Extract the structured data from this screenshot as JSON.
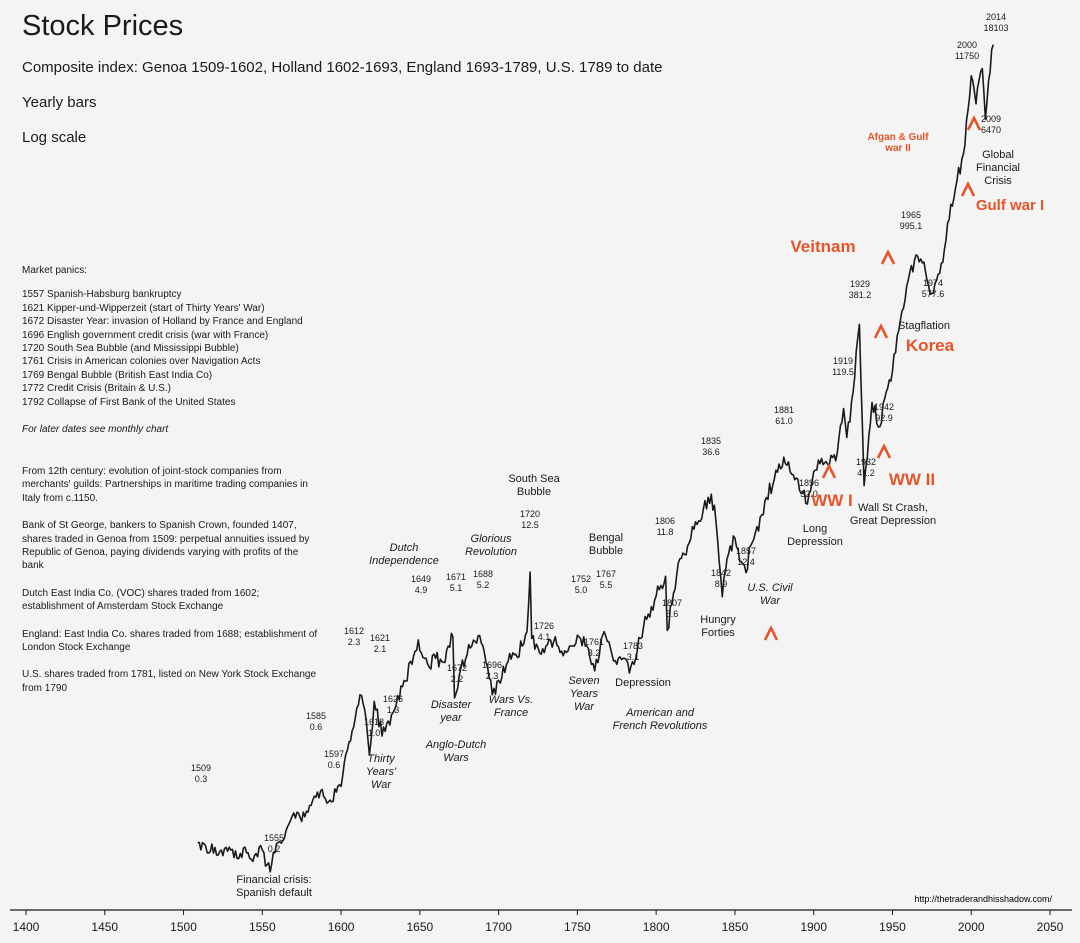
{
  "header": {
    "title": "Stock Prices",
    "subtitle": "Composite index: Genoa 1509-1602, Holland 1602-1693, England 1693-1789, U.S. 1789 to date",
    "notes": [
      "Yearly bars",
      "Log scale"
    ]
  },
  "panics": {
    "heading": "Market panics:",
    "items": [
      "1557 Spanish-Habsburg bankruptcy",
      "1621 Kipper-und-Wipperzeit (start of Thirty Years' War)",
      "1672 Disaster Year: invasion of Holland by France and England",
      "1696 English government credit crisis (war with France)",
      "1720 South Sea Bubble (and Mississippi Bubble)",
      "1761 Crisis in American colonies over Navigation Acts",
      "1769 Bengal Bubble (British East India Co)",
      "1772 Credit Crisis (Britain & U.S.)",
      "1792 Collapse of First Bank of the United States"
    ],
    "later": "For later dates see monthly chart"
  },
  "history": [
    "From 12th century: evolution of joint-stock companies from merchants' guilds: Partnerships in maritime trading companies in Italy from c.1150.",
    "Bank of St George, bankers to Spanish Crown, founded 1407, shares traded in Genoa from 1509: perpetual annuities issued by Republic of Genoa, paying dividends varying with profits of the bank",
    "Dutch East India Co. (VOC) shares traded from 1602; establishment of Amsterdam Stock Exchange",
    "England: East India Co. shares traded from 1688; establishment of London Stock Exchange",
    "U.S. shares traded from 1781, listed on New York Stock Exchange from 1790"
  ],
  "source": "http://thetraderandhisshadow.com/",
  "colors": {
    "line": "#1a1a1a",
    "annotation_orange": "#e8542a",
    "background": "#f4f4f4"
  },
  "chart_data": {
    "type": "line",
    "yscale": "log",
    "xlim": [
      1400,
      2050
    ],
    "ylim": [
      0.1,
      30000
    ],
    "xticks": [
      "1400",
      "1450",
      "1500",
      "1550",
      "1600",
      "1650",
      "1700",
      "1750",
      "1800",
      "1850",
      "1900",
      "1950",
      "2000",
      "2050"
    ],
    "series": [
      {
        "x": [
          1509,
          1515,
          1520,
          1525,
          1530,
          1535,
          1540,
          1545,
          1550,
          1553,
          1555,
          1558,
          1560,
          1565,
          1570,
          1575,
          1580,
          1585,
          1590,
          1597,
          1600,
          1605,
          1612,
          1616,
          1618,
          1621,
          1626,
          1630,
          1635,
          1640,
          1645,
          1649,
          1655,
          1660,
          1665,
          1668,
          1671,
          1672,
          1675,
          1680,
          1685,
          1688,
          1692,
          1696,
          1700,
          1705,
          1710,
          1715,
          1718,
          1720,
          1721,
          1726,
          1730,
          1735,
          1740,
          1745,
          1752,
          1755,
          1758,
          1761,
          1764,
          1767,
          1769,
          1772,
          1775,
          1780,
          1783,
          1786,
          1790,
          1795,
          1800,
          1806,
          1807,
          1810,
          1815,
          1820,
          1825,
          1830,
          1835,
          1838,
          1842,
          1845,
          1850,
          1855,
          1857,
          1860,
          1865,
          1870,
          1875,
          1881,
          1885,
          1890,
          1896,
          1900,
          1905,
          1910,
          1915,
          1919,
          1921,
          1925,
          1929,
          1932,
          1937,
          1942,
          1946,
          1950,
          1955,
          1960,
          1965,
          1970,
          1974,
          1978,
          1982,
          1987,
          1990,
          1995,
          2000,
          2003,
          2007,
          2009,
          2011,
          2014
        ],
        "y": [
          0.3,
          0.26,
          0.28,
          0.25,
          0.27,
          0.24,
          0.26,
          0.25,
          0.27,
          0.22,
          0.2,
          0.26,
          0.3,
          0.35,
          0.45,
          0.4,
          0.5,
          0.6,
          0.55,
          0.6,
          0.65,
          1.2,
          2.3,
          1.6,
          1.0,
          2.1,
          1.3,
          1.6,
          2.0,
          2.8,
          3.5,
          4.9,
          3.5,
          3.8,
          3.6,
          4.5,
          5.1,
          2.2,
          3.0,
          4.0,
          4.8,
          5.2,
          3.6,
          2.3,
          2.8,
          3.5,
          4.0,
          4.5,
          5.5,
          12.5,
          5.0,
          4.1,
          4.5,
          4.8,
          4.2,
          4.5,
          5.0,
          4.5,
          3.8,
          3.2,
          4.0,
          5.5,
          4.8,
          4.0,
          3.5,
          3.8,
          3.1,
          3.5,
          5.0,
          7.0,
          9.0,
          11.8,
          5.6,
          8.0,
          15.0,
          18.0,
          25.0,
          30.0,
          36.6,
          25.0,
          8.9,
          15.0,
          20.0,
          14.0,
          12.4,
          18.0,
          22.0,
          35.0,
          45.0,
          61.0,
          50.0,
          45.0,
          32.0,
          50.0,
          60.0,
          55.0,
          65.0,
          119.5,
          80.0,
          150.0,
          381.2,
          41.2,
          130.0,
          92.9,
          150.0,
          200.0,
          400.0,
          700.0,
          995.1,
          900.0,
          577.6,
          700.0,
          900.0,
          2000.0,
          2500.0,
          4000.0,
          11750.0,
          8000.0,
          13000.0,
          6470.0,
          11000.0,
          18103.0
        ]
      }
    ],
    "labels": [
      {
        "year": "1509",
        "value": "0.3"
      },
      {
        "year": "1555",
        "value": "0.2"
      },
      {
        "year": "1585",
        "value": "0.6"
      },
      {
        "year": "1597",
        "value": "0.6"
      },
      {
        "year": "1612",
        "value": "2.3"
      },
      {
        "year": "1618",
        "value": "1.0"
      },
      {
        "year": "1621",
        "value": "2.1"
      },
      {
        "year": "1626",
        "value": "1.3"
      },
      {
        "year": "1649",
        "value": "4.9"
      },
      {
        "year": "1671",
        "value": "5.1"
      },
      {
        "year": "1672",
        "value": "2.2"
      },
      {
        "year": "1688",
        "value": "5.2"
      },
      {
        "year": "1696",
        "value": "2.3"
      },
      {
        "year": "1720",
        "value": "12.5"
      },
      {
        "year": "1726",
        "value": "4.1"
      },
      {
        "year": "1752",
        "value": "5.0"
      },
      {
        "year": "1761",
        "value": "3.2"
      },
      {
        "year": "1767",
        "value": "5.5"
      },
      {
        "year": "1783",
        "value": "3.1"
      },
      {
        "year": "1806",
        "value": "11.8"
      },
      {
        "year": "1807",
        "value": "5.6"
      },
      {
        "year": "1835",
        "value": "36.6"
      },
      {
        "year": "1842",
        "value": "8.9"
      },
      {
        "year": "1857",
        "value": "12.4"
      },
      {
        "year": "1881",
        "value": "61.0"
      },
      {
        "year": "1896",
        "value": "32.0"
      },
      {
        "year": "1919",
        "value": "119.5"
      },
      {
        "year": "1929",
        "value": "381.2"
      },
      {
        "year": "1932",
        "value": "41.2"
      },
      {
        "year": "1942",
        "value": "92.9"
      },
      {
        "year": "1965",
        "value": "995.1"
      },
      {
        "year": "1974",
        "value": "577.6"
      },
      {
        "year": "2000",
        "value": "11750"
      },
      {
        "year": "2009",
        "value": "6470"
      },
      {
        "year": "2014",
        "value": "18103"
      }
    ],
    "events": [
      {
        "text": "Financial crisis: Spanish default",
        "italic": false
      },
      {
        "text": "Thirty Years' War",
        "italic": true
      },
      {
        "text": "Dutch Independence",
        "italic": true
      },
      {
        "text": "Anglo-Dutch Wars",
        "italic": true
      },
      {
        "text": "Disaster year",
        "italic": true
      },
      {
        "text": "Glorious Revolution",
        "italic": true
      },
      {
        "text": "Wars Vs. France",
        "italic": true
      },
      {
        "text": "South Sea Bubble",
        "italic": false
      },
      {
        "text": "Seven Years War",
        "italic": true
      },
      {
        "text": "Bengal Bubble",
        "italic": false
      },
      {
        "text": "Depression",
        "italic": false
      },
      {
        "text": "American and French Revolutions",
        "italic": true
      },
      {
        "text": "Hungry Forties",
        "italic": false
      },
      {
        "text": "U.S. Civil War",
        "italic": true
      },
      {
        "text": "Long Depression",
        "italic": false
      },
      {
        "text": "Wall St Crash, Great Depression",
        "italic": false
      },
      {
        "text": "Stagflation",
        "italic": false
      },
      {
        "text": "Global Financial Crisis",
        "italic": false
      }
    ],
    "wars": [
      {
        "text": "WW I"
      },
      {
        "text": "WW II"
      },
      {
        "text": "Korea"
      },
      {
        "text": "Veitnam"
      },
      {
        "text": "Gulf war I"
      },
      {
        "text": "Afgan & Gulf war II"
      }
    ]
  }
}
